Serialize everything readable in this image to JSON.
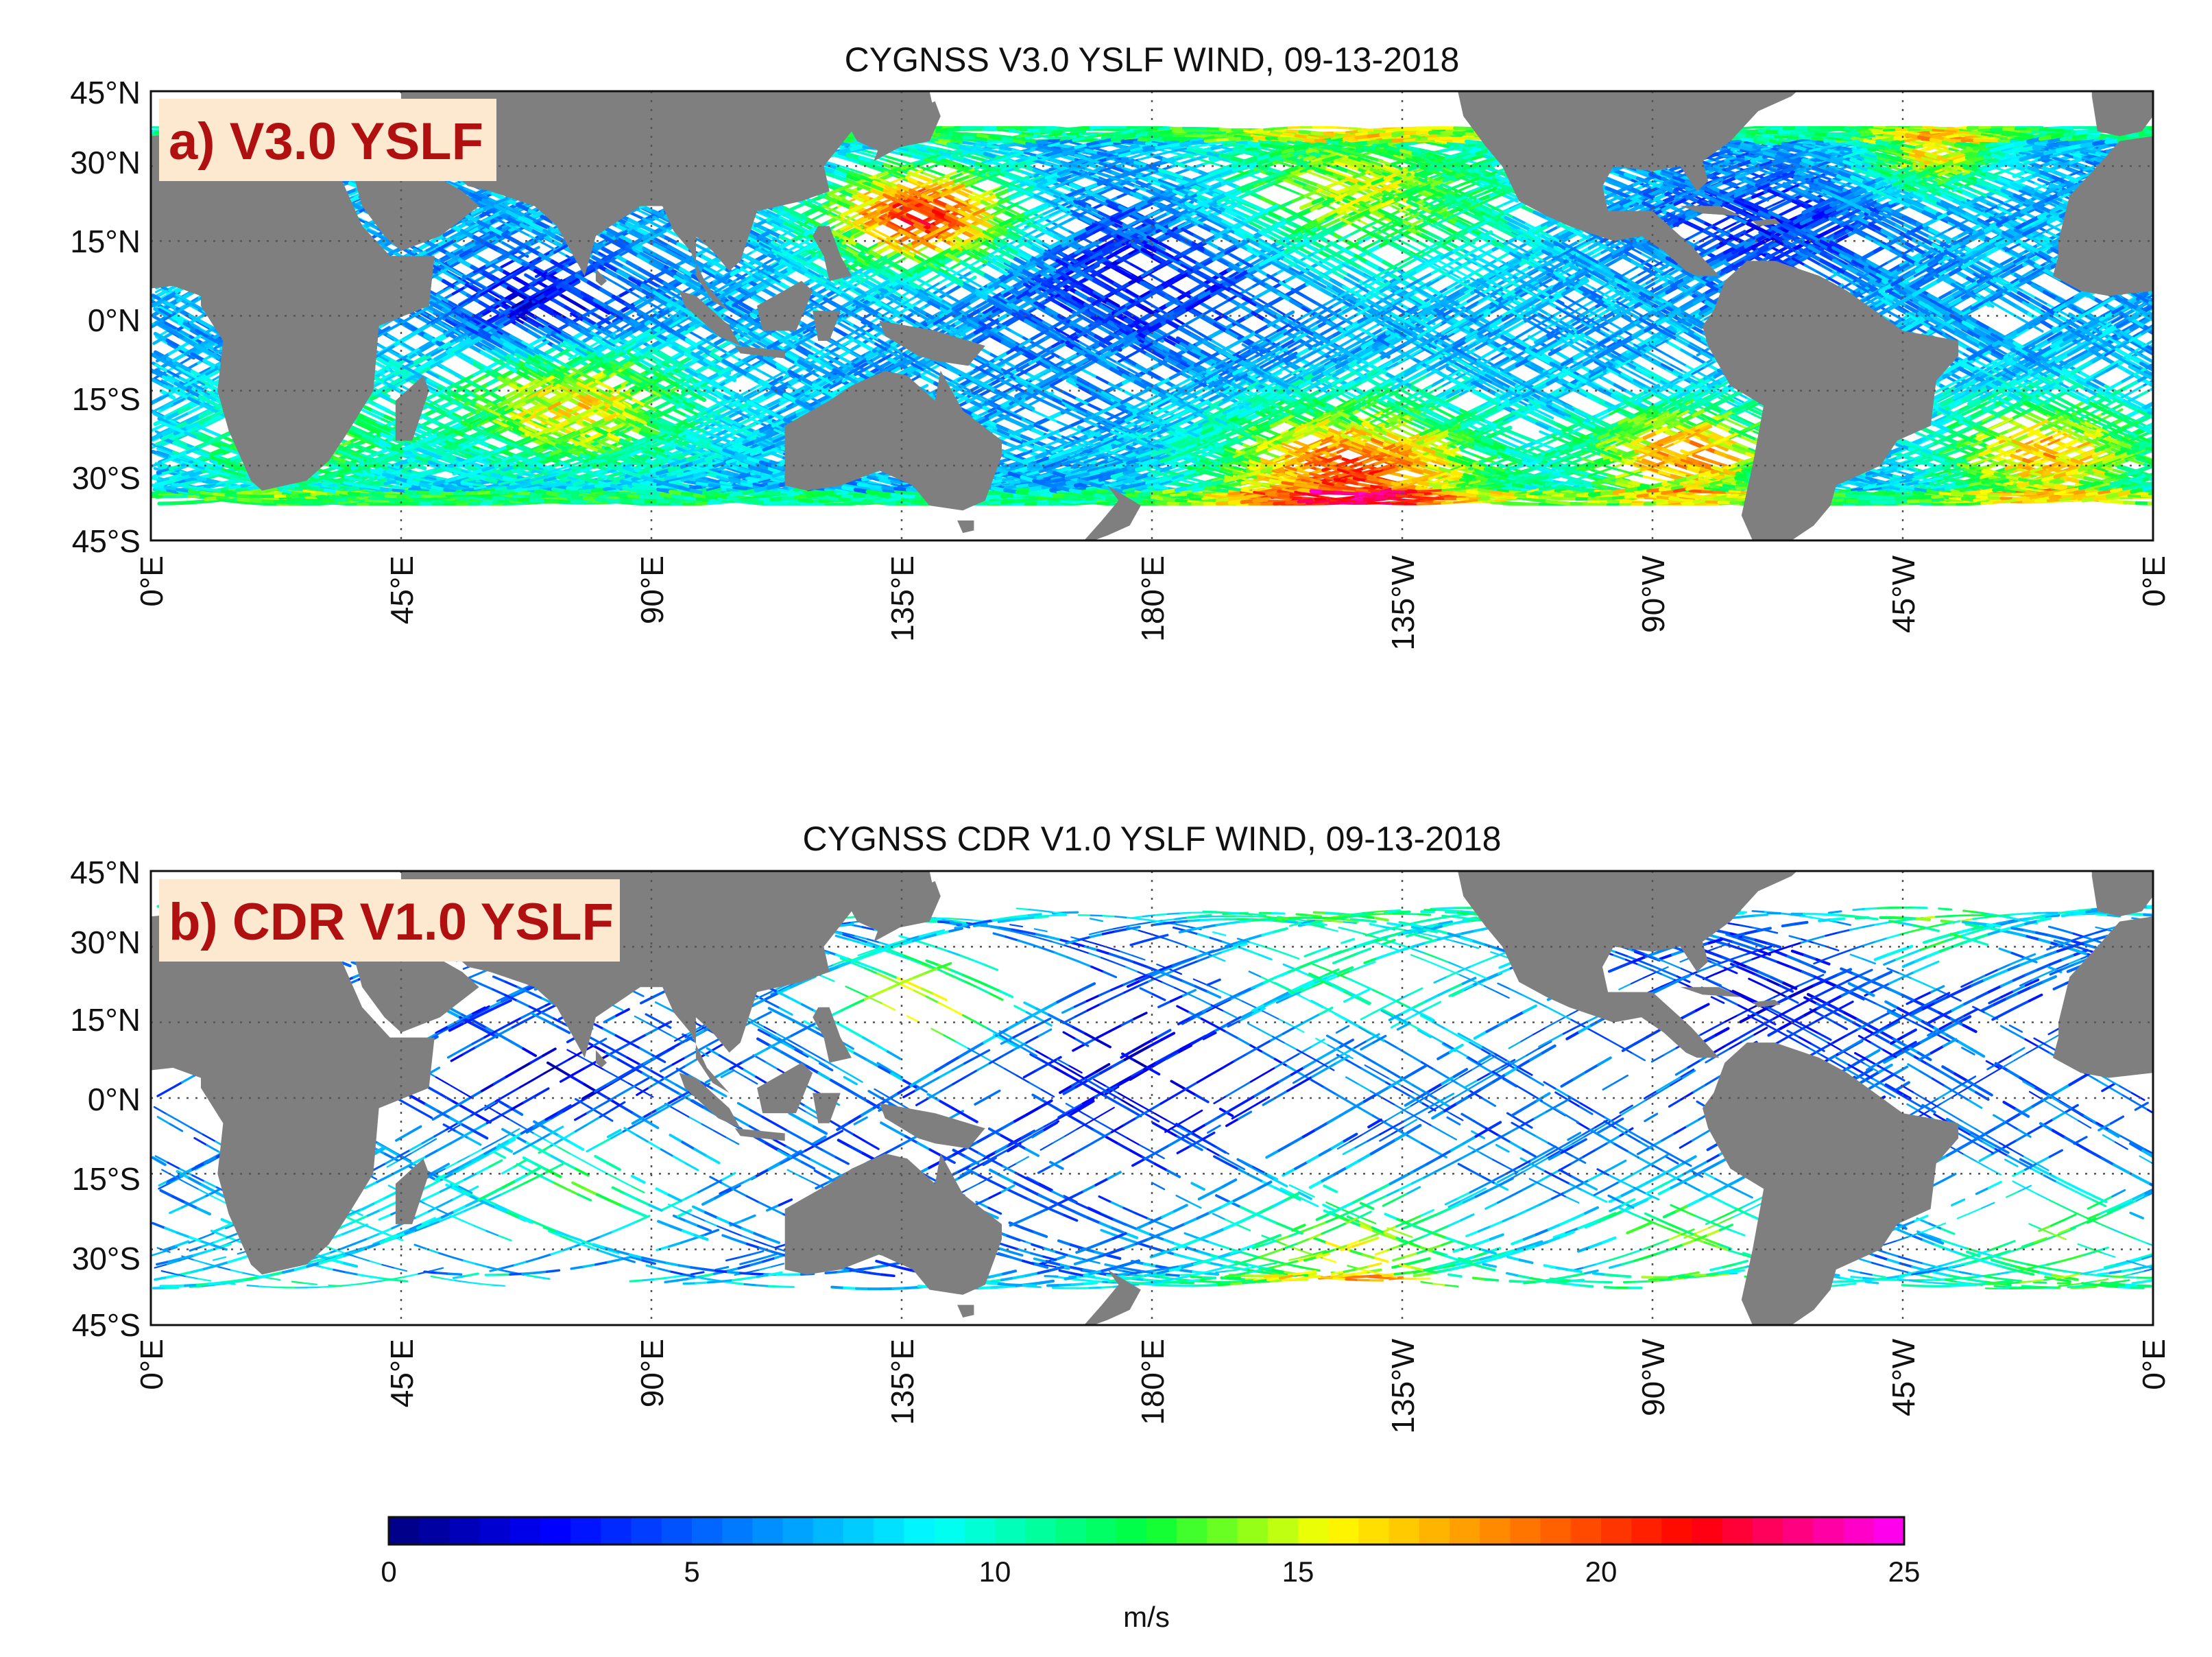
{
  "figure": {
    "colorbar": {
      "min": 0,
      "max": 25,
      "ticks": [
        "0",
        "5",
        "10",
        "15",
        "20",
        "25"
      ],
      "unit": "m/s",
      "colormap": "jet"
    },
    "panels": [
      {
        "id": "a",
        "title": "CYGNSS V3.0 YSLF WIND, 09-13-2018",
        "tag": "a) V3.0 YSLF",
        "tag_background": "#fde9cf",
        "tag_color": "#b01010",
        "coverage": "dense",
        "lat_ticks": [
          "45°N",
          "30°N",
          "15°N",
          "0°N",
          "15°S",
          "30°S",
          "45°S"
        ],
        "lon_ticks": [
          "0°E",
          "45°E",
          "90°E",
          "135°E",
          "180°E",
          "135°W",
          "90°W",
          "45°W",
          "0°E"
        ]
      },
      {
        "id": "b",
        "title": "CYGNSS CDR V1.0 YSLF WIND, 09-13-2018",
        "tag": "b) CDR V1.0 YSLF",
        "tag_background": "#fde9cf",
        "tag_color": "#b01010",
        "coverage": "sparse",
        "lat_ticks": [
          "45°N",
          "30°N",
          "15°N",
          "0°N",
          "15°S",
          "30°S",
          "45°S"
        ],
        "lon_ticks": [
          "0°E",
          "45°E",
          "90°E",
          "135°E",
          "180°E",
          "135°W",
          "90°W",
          "45°W",
          "0°E"
        ]
      }
    ],
    "colors": {
      "land": "#7f7f7f",
      "ocean_nodata": "#ffffff",
      "frame": "#111111"
    }
  }
}
